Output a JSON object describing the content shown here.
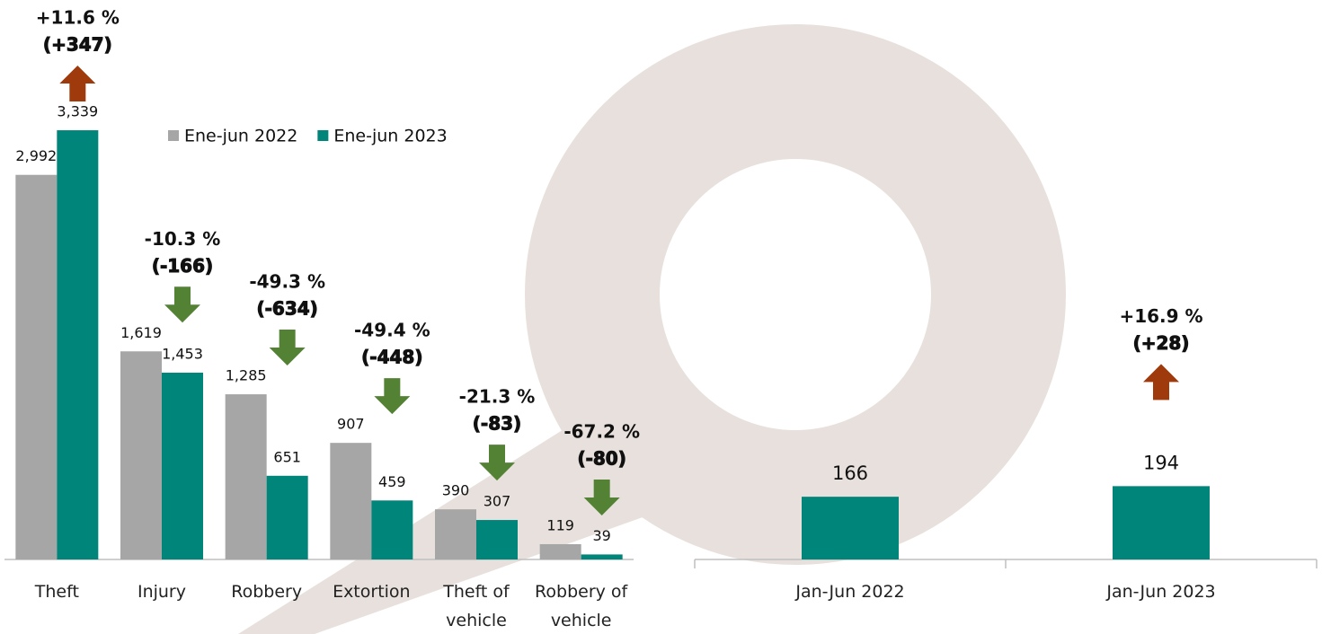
{
  "chart_data": [
    {
      "type": "bar",
      "categories": [
        "Theft",
        "Injury",
        "Robbery",
        "Extortion",
        "Theft of vehicle",
        "Robbery of vehicle"
      ],
      "series": [
        {
          "name": "Ene-jun 2022",
          "color": "#a6a6a6",
          "values": [
            2992,
            1619,
            1285,
            907,
            390,
            119
          ],
          "value_labels": [
            "2,992",
            "1,619",
            "1,285",
            "907",
            "390",
            "119"
          ]
        },
        {
          "name": "Ene-jun 2023",
          "color": "#00857a",
          "values": [
            3339,
            1453,
            651,
            459,
            307,
            39
          ],
          "value_labels": [
            "3,339",
            "1,453",
            "651",
            "459",
            "307",
            "39"
          ]
        }
      ],
      "ylim": [
        0,
        3500
      ],
      "annotations": [
        {
          "percent": "+11.6 %",
          "change": "(+347)",
          "direction": "up"
        },
        {
          "percent": "-10.3 %",
          "change": "(-166)",
          "direction": "down"
        },
        {
          "percent": "-49.3 %",
          "change": "(-634)",
          "direction": "down"
        },
        {
          "percent": "-49.4 %",
          "change": "(-448)",
          "direction": "down"
        },
        {
          "percent": "-21.3 %",
          "change": "(-83)",
          "direction": "down"
        },
        {
          "percent": "-67.2 %",
          "change": "(-80)",
          "direction": "down"
        }
      ],
      "arrow_colors": {
        "up": "#9e3a0b",
        "down": "#548235"
      }
    },
    {
      "type": "bar",
      "categories": [
        "Jan-Jun 2022",
        "Jan-Jun 2023"
      ],
      "values": [
        166,
        194
      ],
      "color": "#00857a",
      "ylim": [
        0,
        1200
      ],
      "annotations": [
        null,
        {
          "percent": "+16.9 %",
          "change": "(+28)",
          "direction": "up"
        }
      ],
      "arrow_colors": {
        "up": "#9e3a0b",
        "down": "#548235"
      }
    }
  ]
}
